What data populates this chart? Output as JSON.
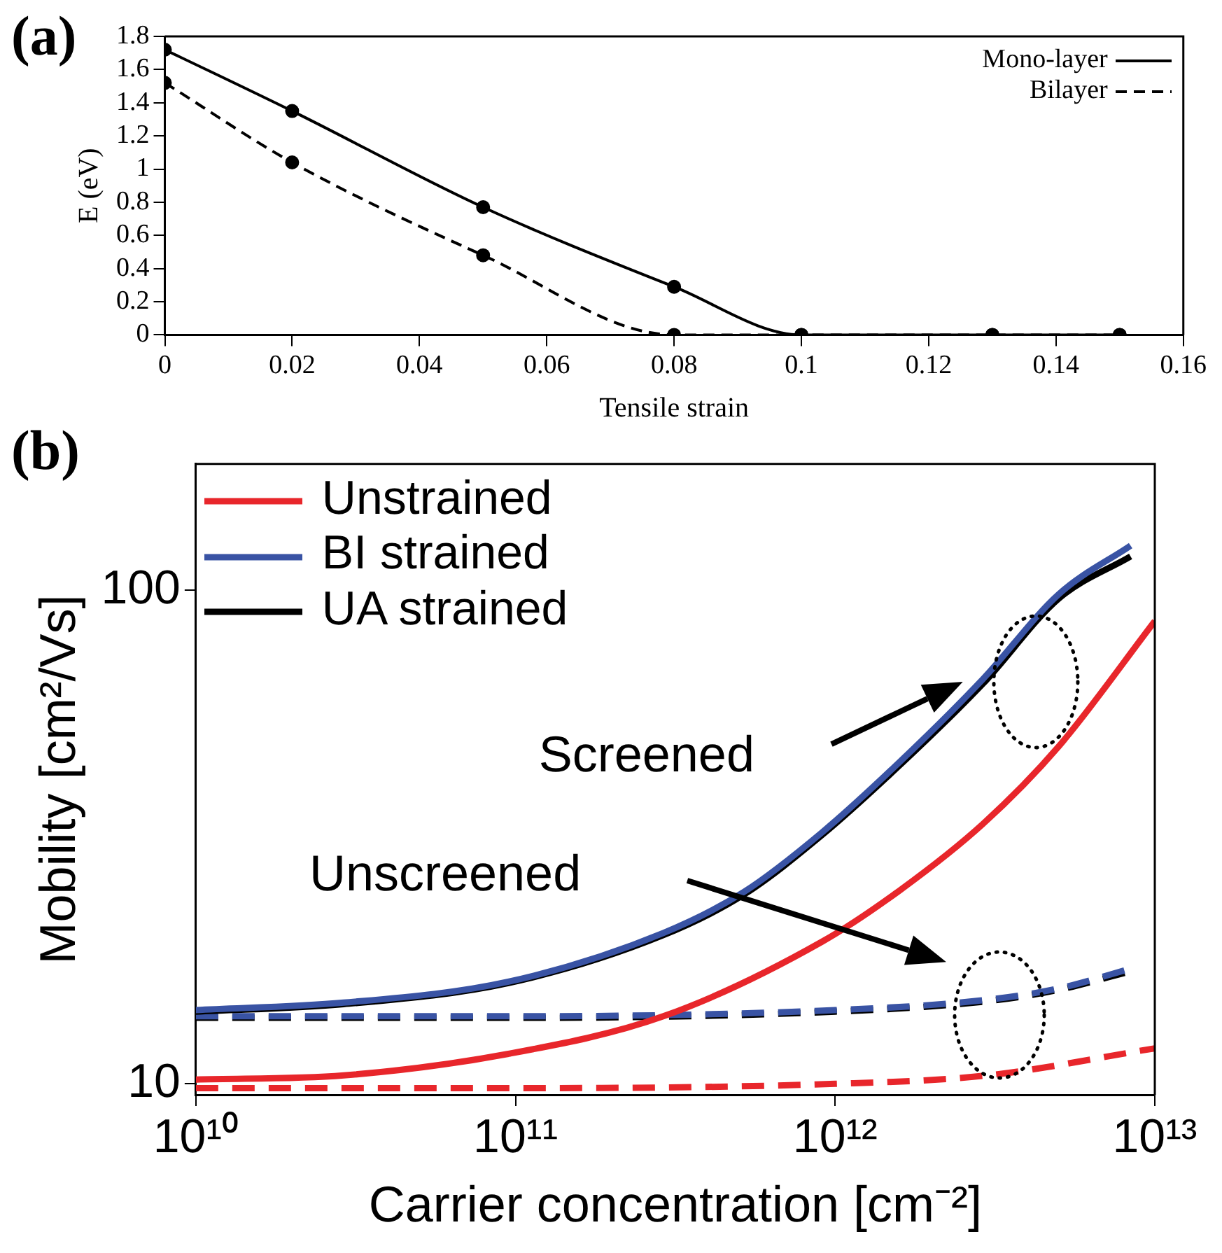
{
  "chart_data": [
    {
      "type": "line",
      "title": "(a)",
      "xlabel": "Tensile strain",
      "ylabel": "E (eV)",
      "xlim": [
        0,
        0.16
      ],
      "xticks": [
        0,
        0.02,
        0.04,
        0.06,
        0.08,
        0.1,
        0.12,
        0.14,
        0.16
      ],
      "ylim": [
        0,
        1.8
      ],
      "yticks": [
        0,
        0.2,
        0.4,
        0.6,
        0.8,
        1,
        1.2,
        1.4,
        1.6,
        1.8
      ],
      "legend": "top right",
      "marker": "circle",
      "series": [
        {
          "name": "Mono-layer",
          "color": "#000000",
          "line_style": "solid",
          "x": [
            0,
            0.02,
            0.05,
            0.08,
            0.1,
            0.13,
            0.15
          ],
          "values": [
            1.72,
            1.35,
            0.77,
            0.29,
            0,
            0,
            0
          ]
        },
        {
          "name": "Bilayer",
          "color": "#000000",
          "line_style": "dashed",
          "x": [
            0,
            0.02,
            0.05,
            0.08,
            0.1,
            0.13,
            0.15
          ],
          "values": [
            1.52,
            1.04,
            0.48,
            0,
            0,
            0,
            0
          ]
        }
      ]
    },
    {
      "type": "line",
      "title": "(b)",
      "xlabel": "Carrier concentration [cm⁻²]",
      "ylabel": "Mobility [cm²/Vs]",
      "log": "xy",
      "xlim": [
        10000000000.0,
        10000000000000.0
      ],
      "xticks": [
        {
          "value": 10000000000.0,
          "label": "10¹⁰"
        },
        {
          "value": 100000000000.0,
          "label": "10¹¹"
        },
        {
          "value": 1000000000000.0,
          "label": "10¹²"
        },
        {
          "value": 10000000000000.0,
          "label": "10¹³"
        }
      ],
      "ylim": [
        9.5,
        180
      ],
      "yticks": [
        10,
        100
      ],
      "legend": "top left",
      "annotations": [
        "Screened",
        "Unscreened"
      ],
      "series": [
        {
          "name": "Unstrained",
          "color": "#e8262b",
          "line_style": "solid",
          "x": [
            10000000000.0,
            29000000000.0,
            95000000000.0,
            290000000000.0,
            910000000000.0,
            1600000000000.0,
            2900000000000.0,
            5000000000000.0,
            10000000000000.0
          ],
          "values": [
            10.2,
            10.4,
            11.5,
            13.7,
            19.4,
            24.7,
            33.6,
            48.2,
            86.5
          ]
        },
        {
          "name": "BI strained",
          "color": "#3953a4",
          "line_style": "solid",
          "x": [
            10000000000.0,
            29000000000.0,
            95000000000.0,
            290000000000.0,
            520000000000.0,
            910000000000.0,
            1600000000000.0,
            2900000000000.0,
            5000000000000.0,
            8400000000000.0
          ],
          "values": [
            14.1,
            14.6,
            16.1,
            20.2,
            24.5,
            32.3,
            45,
            66,
            98,
            123
          ]
        },
        {
          "name": "UA strained",
          "color": "#000000",
          "line_style": "solid",
          "x": [
            10000000000.0,
            29000000000.0,
            95000000000.0,
            290000000000.0,
            520000000000.0,
            910000000000.0,
            1600000000000.0,
            2900000000000.0,
            5000000000000.0,
            8400000000000.0
          ],
          "values": [
            14,
            14.5,
            16,
            20,
            24.2,
            31.9,
            44.3,
            64.6,
            96,
            117
          ]
        },
        {
          "color": "#e8262b",
          "line_style": "dashed",
          "x": [
            10000000000.0,
            100000000000.0,
            1000000000000.0,
            3000000000000.0,
            10000000000000.0
          ],
          "values": [
            9.8,
            9.8,
            10,
            10.4,
            11.8
          ]
        },
        {
          "color": "#3953a4",
          "line_style": "dashed",
          "x": [
            10000000000.0,
            100000000000.0,
            1000000000000.0,
            3000000000000.0,
            5000000000000.0,
            8400000000000.0
          ],
          "values": [
            13.7,
            13.7,
            14.1,
            14.8,
            15.6,
            17.1
          ]
        },
        {
          "color": "#000000",
          "line_style": "dashed",
          "x": [
            10000000000.0,
            100000000000.0,
            1000000000000.0,
            3000000000000.0,
            5000000000000.0,
            8400000000000.0
          ],
          "values": [
            13.6,
            13.6,
            14,
            14.7,
            15.5,
            16.9
          ]
        }
      ]
    }
  ]
}
